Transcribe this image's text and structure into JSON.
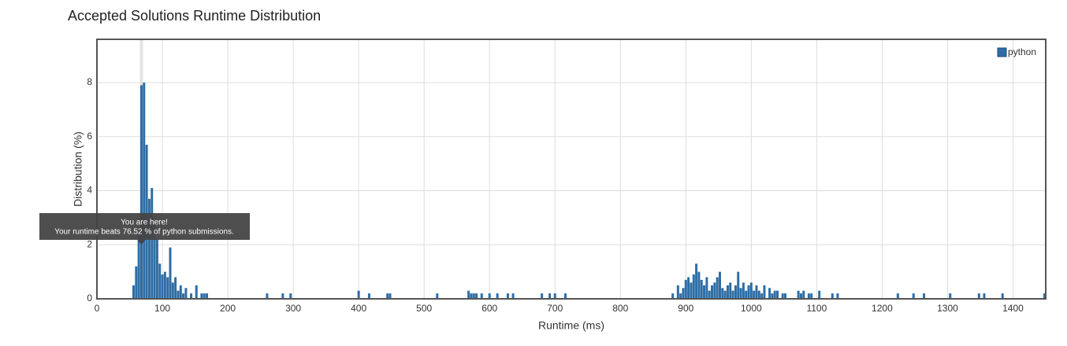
{
  "chart_data": {
    "type": "bar",
    "title": "Accepted Solutions Runtime Distribution",
    "x_label": "Runtime (ms)",
    "y_label": "Distribution (%)",
    "xlim": [
      0,
      1450
    ],
    "ylim": [
      0,
      9.6
    ],
    "xticks": [
      0,
      100,
      200,
      300,
      400,
      500,
      600,
      700,
      800,
      900,
      1000,
      1100,
      1200,
      1300,
      1400
    ],
    "yticks": [
      0,
      2,
      4,
      6,
      8
    ],
    "grid": true,
    "legend": "top-right",
    "x": [
      56,
      60,
      64,
      68,
      72,
      76,
      80,
      84,
      88,
      92,
      96,
      100,
      104,
      108,
      112,
      116,
      120,
      124,
      128,
      132,
      136,
      144,
      152,
      160,
      164,
      168,
      260,
      284,
      296,
      400,
      416,
      444,
      448,
      520,
      568,
      572,
      576,
      580,
      588,
      600,
      612,
      628,
      636,
      680,
      692,
      700,
      716,
      880,
      888,
      892,
      896,
      900,
      904,
      908,
      912,
      916,
      920,
      924,
      928,
      932,
      936,
      940,
      944,
      948,
      952,
      956,
      960,
      964,
      968,
      972,
      976,
      980,
      984,
      988,
      992,
      996,
      1000,
      1004,
      1008,
      1012,
      1016,
      1020,
      1028,
      1032,
      1036,
      1040,
      1048,
      1052,
      1072,
      1076,
      1080,
      1088,
      1092,
      1104,
      1124,
      1132,
      1224,
      1248,
      1264,
      1304,
      1348,
      1356,
      1384,
      1448
    ],
    "series": [
      {
        "name": "python",
        "color": "#2e6da4",
        "values": [
          0.5,
          1.2,
          2.5,
          7.9,
          8.0,
          5.7,
          3.7,
          4.1,
          2.8,
          2.2,
          1.3,
          0.9,
          1.0,
          0.8,
          1.9,
          0.6,
          0.8,
          0.3,
          0.5,
          0.2,
          0.4,
          0.2,
          0.5,
          0.2,
          0.2,
          0.2,
          0.2,
          0.2,
          0.2,
          0.3,
          0.2,
          0.2,
          0.2,
          0.2,
          0.3,
          0.2,
          0.2,
          0.2,
          0.2,
          0.2,
          0.2,
          0.2,
          0.2,
          0.2,
          0.2,
          0.2,
          0.2,
          0.2,
          0.5,
          0.2,
          0.4,
          0.7,
          0.8,
          0.6,
          0.9,
          1.3,
          1.0,
          0.7,
          0.5,
          0.8,
          0.3,
          0.5,
          0.6,
          0.8,
          1.0,
          0.4,
          0.3,
          0.5,
          0.6,
          0.3,
          0.5,
          1.0,
          0.4,
          0.6,
          0.3,
          0.5,
          0.6,
          0.3,
          0.5,
          0.3,
          0.2,
          0.5,
          0.4,
          0.2,
          0.3,
          0.3,
          0.2,
          0.2,
          0.3,
          0.2,
          0.3,
          0.2,
          0.2,
          0.3,
          0.2,
          0.2,
          0.2,
          0.2,
          0.2,
          0.2,
          0.2,
          0.2,
          0.2,
          0.2
        ]
      }
    ],
    "annotation": {
      "x": 68,
      "title": "You are here!",
      "text": "Your runtime beats 76.52 % of python submissions."
    }
  }
}
